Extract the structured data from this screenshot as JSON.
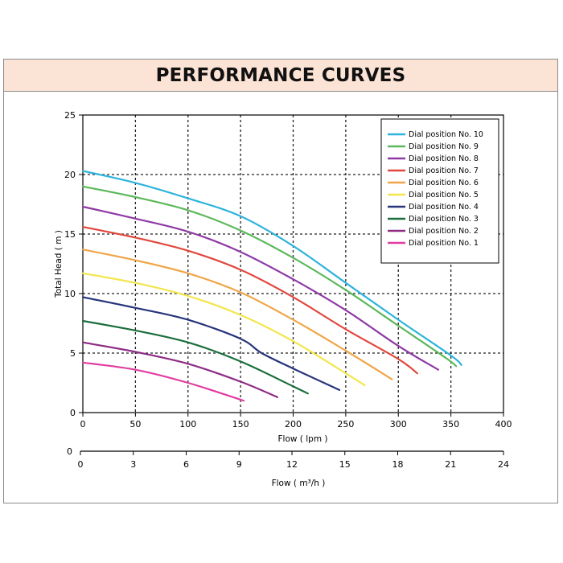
{
  "header": {
    "title": "PERFORMANCE CURVES"
  },
  "chart_data": {
    "type": "line",
    "title": "PERFORMANCE CURVES",
    "xlabel": "Flow ( lpm )",
    "ylabel": "Total Head ( m )",
    "xlim": [
      0,
      400
    ],
    "ylim": [
      0,
      25
    ],
    "x_ticks": [
      "0",
      "50",
      "100",
      "150",
      "200",
      "250",
      "300",
      "350",
      "400"
    ],
    "y_ticks": [
      "0",
      "5",
      "10",
      "15",
      "20",
      "25"
    ],
    "secondary_x_axis": {
      "label": "Flow ( m³/h )",
      "zero_label": "0",
      "ticks": [
        "0",
        "3",
        "6",
        "9",
        "12",
        "15",
        "18",
        "21",
        "24"
      ]
    },
    "grid": true,
    "grid_style": "dashed",
    "legend_position": "top-right",
    "series": [
      {
        "name": "Dial position No. 10",
        "color": "#2eb4dc",
        "x": [
          0,
          50,
          100,
          150,
          200,
          250,
          300,
          350,
          360
        ],
        "y": [
          20.3,
          19.3,
          18.0,
          16.5,
          14.0,
          10.9,
          7.8,
          4.8,
          4.0
        ]
      },
      {
        "name": "Dial position No. 9",
        "color": "#5cb85c",
        "x": [
          0,
          50,
          100,
          150,
          200,
          250,
          300,
          345,
          355
        ],
        "y": [
          19.0,
          18.1,
          17.0,
          15.3,
          13.0,
          10.3,
          7.3,
          4.6,
          3.9
        ]
      },
      {
        "name": "Dial position No. 8",
        "color": "#8e3aa5",
        "x": [
          0,
          50,
          100,
          150,
          200,
          250,
          300,
          338
        ],
        "y": [
          17.3,
          16.3,
          15.2,
          13.5,
          11.2,
          8.6,
          5.6,
          3.6
        ]
      },
      {
        "name": "Dial position No. 7",
        "color": "#e0483e",
        "x": [
          0,
          50,
          100,
          150,
          200,
          250,
          300,
          318
        ],
        "y": [
          15.6,
          14.7,
          13.6,
          12.0,
          9.7,
          7.0,
          4.5,
          3.3
        ]
      },
      {
        "name": "Dial position No. 6",
        "color": "#f0a64a",
        "x": [
          0,
          50,
          100,
          150,
          200,
          250,
          294
        ],
        "y": [
          13.7,
          12.8,
          11.7,
          10.1,
          7.8,
          5.2,
          2.8
        ]
      },
      {
        "name": "Dial position No. 5",
        "color": "#f2e64c",
        "x": [
          0,
          50,
          100,
          150,
          200,
          250,
          268
        ],
        "y": [
          11.7,
          10.9,
          9.8,
          8.2,
          6.0,
          3.3,
          2.3
        ]
      },
      {
        "name": "Dial position No. 4",
        "color": "#27357a",
        "x": [
          0,
          50,
          100,
          150,
          170,
          200,
          244
        ],
        "y": [
          9.7,
          8.8,
          7.8,
          6.2,
          5.0,
          3.7,
          1.9
        ]
      },
      {
        "name": "Dial position No. 3",
        "color": "#1b6e3c",
        "x": [
          0,
          50,
          100,
          150,
          200,
          214
        ],
        "y": [
          7.7,
          6.9,
          5.9,
          4.3,
          2.2,
          1.6
        ]
      },
      {
        "name": "Dial position No. 2",
        "color": "#8e2c86",
        "x": [
          0,
          50,
          100,
          150,
          185
        ],
        "y": [
          5.9,
          5.1,
          4.1,
          2.6,
          1.3
        ]
      },
      {
        "name": "Dial position No. 1",
        "color": "#e03da0",
        "x": [
          0,
          50,
          100,
          153
        ],
        "y": [
          4.2,
          3.6,
          2.5,
          1.0
        ]
      }
    ]
  }
}
